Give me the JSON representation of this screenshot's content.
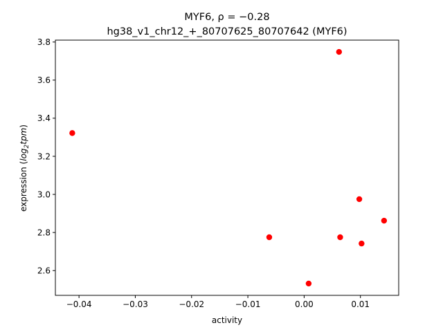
{
  "chart_data": {
    "type": "scatter",
    "title_line1": "MYF6, ρ = −0.28",
    "title_line2": "hg38_v1_chr12_+_80707625_80707642 (MYF6)",
    "xlabel": "activity",
    "ylabel_prefix": "expression (",
    "ylabel_log": "log",
    "ylabel_sub": "2",
    "ylabel_tpm": "tpm",
    "ylabel_suffix": ")",
    "xlim": [
      -0.0442,
      0.0168
    ],
    "ylim": [
      2.47,
      3.81
    ],
    "xticks": [
      {
        "value": -0.04,
        "label": "−0.04"
      },
      {
        "value": -0.03,
        "label": "−0.03"
      },
      {
        "value": -0.02,
        "label": "−0.02"
      },
      {
        "value": -0.01,
        "label": "−0.01"
      },
      {
        "value": 0.0,
        "label": "0.00"
      },
      {
        "value": 0.01,
        "label": "0.01"
      }
    ],
    "yticks": [
      {
        "value": 2.6,
        "label": "2.6"
      },
      {
        "value": 2.8,
        "label": "2.8"
      },
      {
        "value": 3.0,
        "label": "3.0"
      },
      {
        "value": 3.2,
        "label": "3.2"
      },
      {
        "value": 3.4,
        "label": "3.4"
      },
      {
        "value": 3.6,
        "label": "3.6"
      },
      {
        "value": 3.8,
        "label": "3.8"
      }
    ],
    "points": [
      {
        "x": -0.0412,
        "y": 3.322
      },
      {
        "x": 0.0062,
        "y": 3.748
      },
      {
        "x": 0.0098,
        "y": 2.975
      },
      {
        "x": 0.0142,
        "y": 2.862
      },
      {
        "x": -0.0062,
        "y": 2.775
      },
      {
        "x": 0.0064,
        "y": 2.775
      },
      {
        "x": 0.0102,
        "y": 2.742
      },
      {
        "x": 0.0008,
        "y": 2.532
      }
    ],
    "point_color": "#ff0000",
    "grid": false
  }
}
